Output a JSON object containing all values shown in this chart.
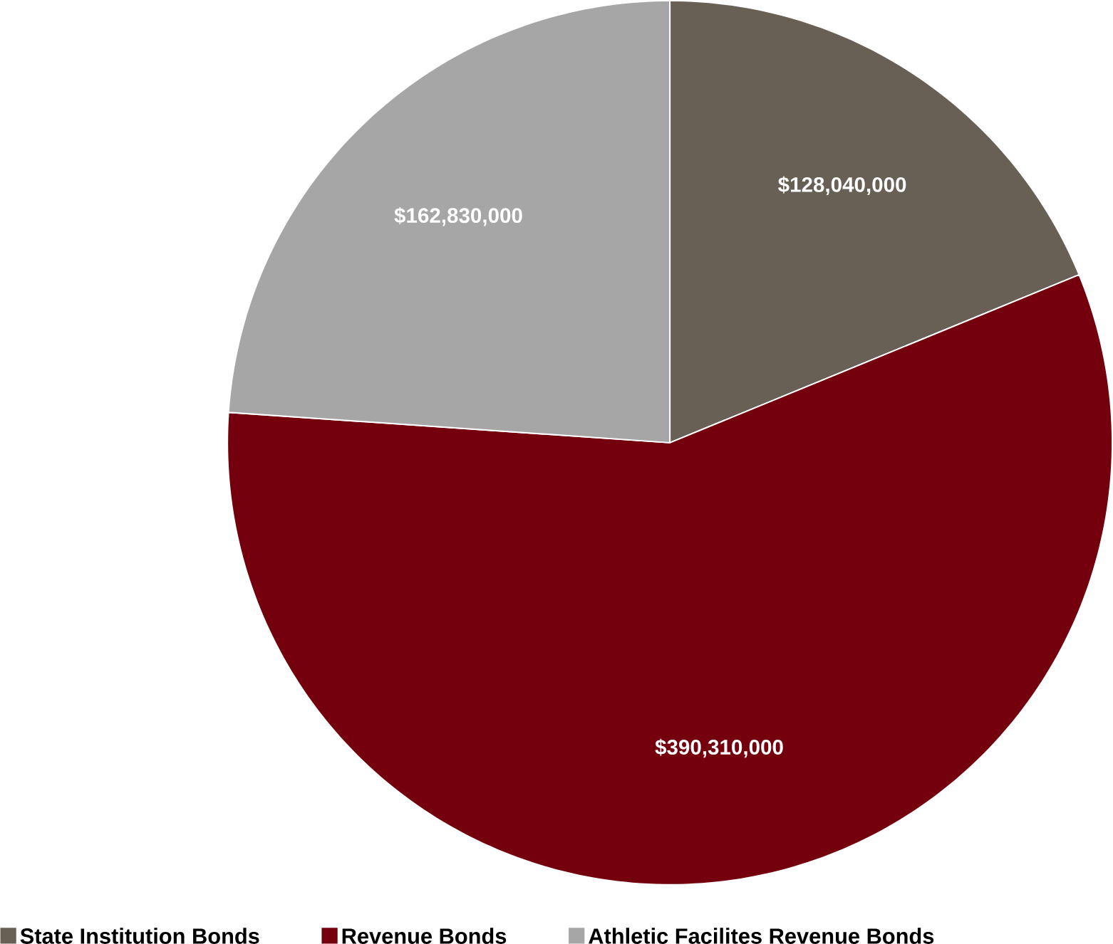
{
  "chart_data": {
    "type": "pie",
    "categories": [
      "State Institution Bonds",
      "Revenue Bonds",
      "Athletic Facilites Revenue Bonds"
    ],
    "values": [
      128040000,
      390310000,
      162830000
    ],
    "colors": [
      "#686054",
      "#74000e",
      "#a6a6a6"
    ],
    "value_labels": [
      "$128,040,000",
      "$390,310,000",
      "$162,830,000"
    ],
    "legend": "bottom"
  }
}
